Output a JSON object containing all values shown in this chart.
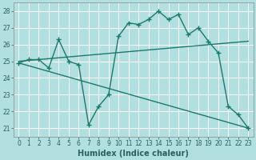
{
  "xlabel": "Humidex (Indice chaleur)",
  "background_color": "#b2e0e0",
  "grid_color": "#d0ecec",
  "line_color": "#1a7a6a",
  "xlim": [
    -0.5,
    23.5
  ],
  "ylim": [
    20.5,
    28.5
  ],
  "yticks": [
    21,
    22,
    23,
    24,
    25,
    26,
    27,
    28
  ],
  "xticks": [
    0,
    1,
    2,
    3,
    4,
    5,
    6,
    7,
    8,
    9,
    10,
    11,
    12,
    13,
    14,
    15,
    16,
    17,
    18,
    19,
    20,
    21,
    22,
    23
  ],
  "main_series": [
    [
      0,
      24.9
    ],
    [
      1,
      25.1
    ],
    [
      2,
      25.1
    ],
    [
      3,
      24.6
    ],
    [
      4,
      26.3
    ],
    [
      5,
      25.0
    ],
    [
      6,
      24.8
    ],
    [
      7,
      21.2
    ],
    [
      8,
      22.3
    ],
    [
      9,
      23.0
    ],
    [
      10,
      26.5
    ],
    [
      11,
      27.3
    ],
    [
      12,
      27.2
    ],
    [
      13,
      27.5
    ],
    [
      14,
      28.0
    ],
    [
      15,
      27.5
    ],
    [
      16,
      27.8
    ],
    [
      17,
      26.6
    ],
    [
      18,
      27.0
    ],
    [
      19,
      26.2
    ],
    [
      20,
      25.5
    ],
    [
      21,
      22.3
    ],
    [
      22,
      21.8
    ],
    [
      23,
      21.0
    ]
  ],
  "upper_line": [
    [
      0,
      25.0
    ],
    [
      23,
      26.2
    ]
  ],
  "lower_line": [
    [
      0,
      24.9
    ],
    [
      23,
      21.0
    ]
  ],
  "marker_size": 4,
  "line_width": 1.0,
  "tick_fontsize": 5.5,
  "xlabel_fontsize": 7,
  "tick_color": "#2a6060"
}
